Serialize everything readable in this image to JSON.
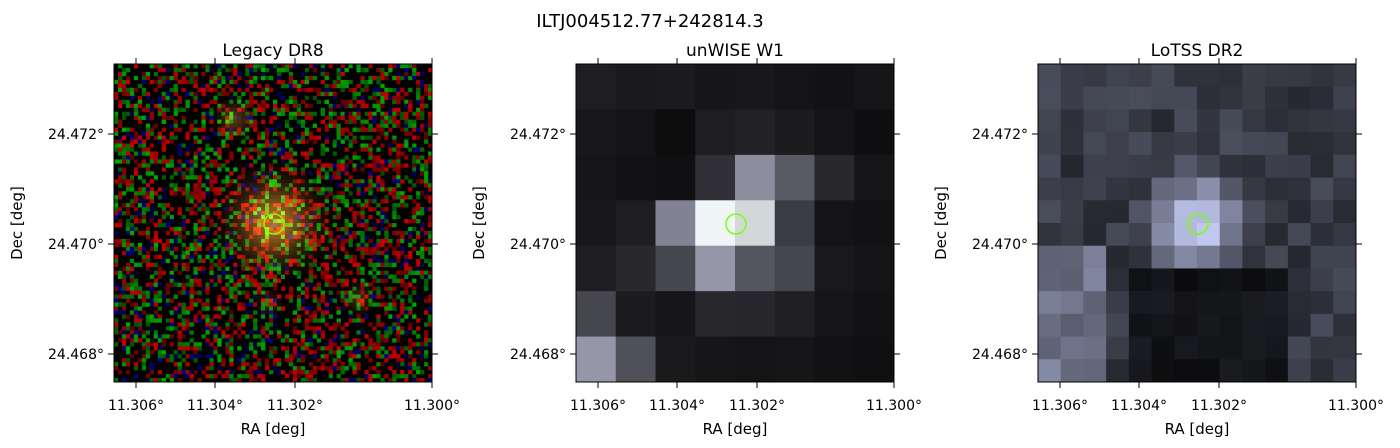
{
  "figure": {
    "title": "ILTJ004512.77+242814.3"
  },
  "axes_common": {
    "xlabel": "RA [deg]",
    "ylabel": "Dec [deg]",
    "xticks": [
      "11.306°",
      "11.304°",
      "11.302°",
      "11.300°"
    ],
    "yticks": [
      "24.472°",
      "24.470°",
      "24.468°"
    ]
  },
  "panels": [
    {
      "title": "Legacy DR8",
      "kind": "rgb_noise",
      "show_ylabel": true,
      "show_yticklabels": true
    },
    {
      "title": "unWISE W1",
      "kind": "gray_blocks",
      "show_ylabel": true,
      "show_yticklabels": true
    },
    {
      "title": "LoTSS DR2",
      "kind": "blue_gray_blocks",
      "show_ylabel": true,
      "show_yticklabels": true
    }
  ],
  "colors": {
    "marker_circle": "#7fff00",
    "background": "#ffffff",
    "axis": "#000000"
  },
  "marker": {
    "shape": "circle",
    "ra": 11.30319,
    "dec": 24.47044
  }
}
